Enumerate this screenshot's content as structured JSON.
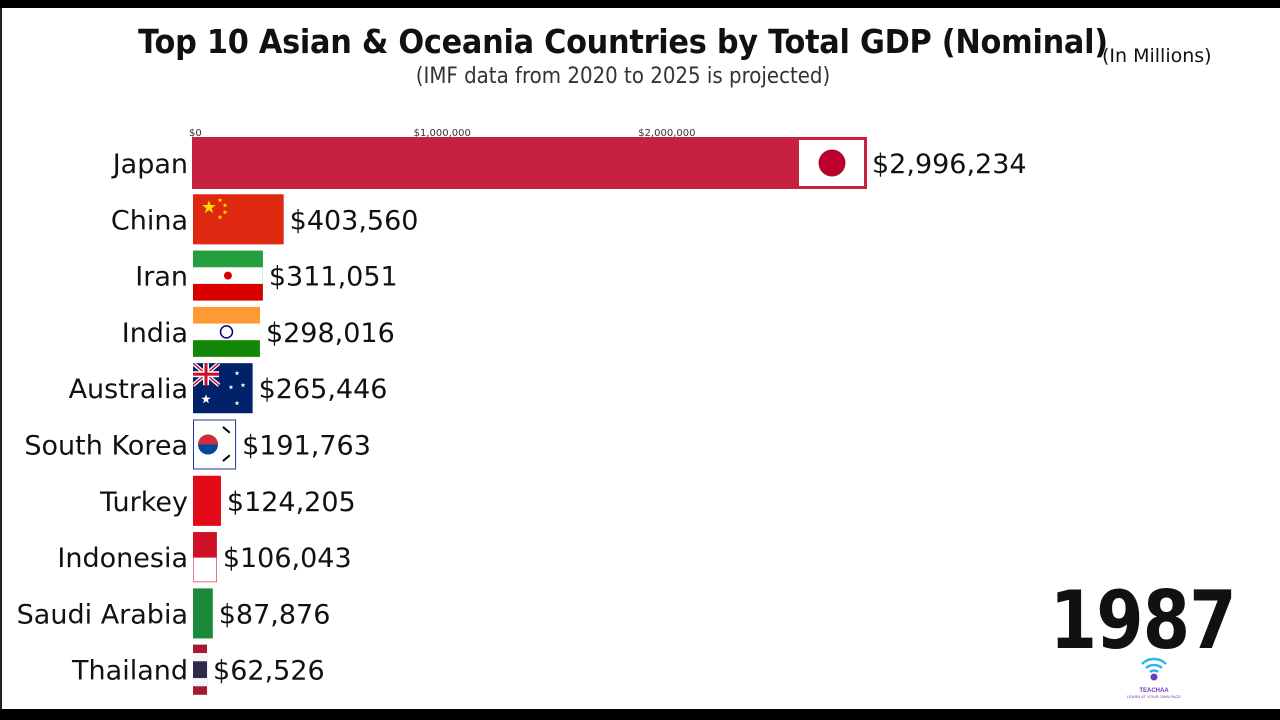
{
  "header": {
    "title": "Top 10 Asian & Oceania Countries by Total GDP (Nominal)",
    "subtitle": "(IMF data from 2020 to 2025 is projected)",
    "units": "(In Millions)"
  },
  "year": "1987",
  "logo": {
    "name": "TEACHAA",
    "tagline": "LEARN AT YOUR OWN PACE"
  },
  "colors": {
    "japan": "#c8203f",
    "china": "#e0251b",
    "accent": "#c8203f"
  },
  "chart_data": {
    "type": "bar",
    "orientation": "horizontal",
    "title": "Top 10 Asian & Oceania Countries by Total GDP (Nominal)",
    "subtitle": "(IMF data from 2020 to 2025 is projected)",
    "xlim": [
      0,
      2996234
    ],
    "ticks": [
      0,
      1000000,
      2000000
    ],
    "tick_labels": [
      "$0",
      "$1,000,000",
      "$2,000,000"
    ],
    "grid": false,
    "legend": "none",
    "categories": [
      "Japan",
      "China",
      "Iran",
      "India",
      "Australia",
      "South Korea",
      "Turkey",
      "Indonesia",
      "Saudi Arabia",
      "Thailand"
    ],
    "values": [
      2996234,
      403560,
      311051,
      298016,
      265446,
      191763,
      124205,
      106043,
      87876,
      62526
    ],
    "value_labels": [
      "$2,996,234",
      "$403,560",
      "$311,051",
      "$298,016",
      "$265,446",
      "$191,763",
      "$124,205",
      "$106,043",
      "$87,876",
      "$62,526"
    ],
    "bar_colors": [
      "#c8203f",
      "#e0251b",
      "#239f40",
      "#ff9933",
      "#1f3a93",
      "#ffffff",
      "#e30a17",
      "#ce1126",
      "#1b8a3a",
      "#2d2a6e"
    ],
    "flags": [
      "japan-flag-icon",
      "china-flag-icon",
      "iran-flag-icon",
      "india-flag-icon",
      "australia-flag-icon",
      "south-korea-flag-icon",
      "turkey-flag-icon",
      "indonesia-flag-icon",
      "saudi-arabia-flag-icon",
      "thailand-flag-icon"
    ]
  }
}
